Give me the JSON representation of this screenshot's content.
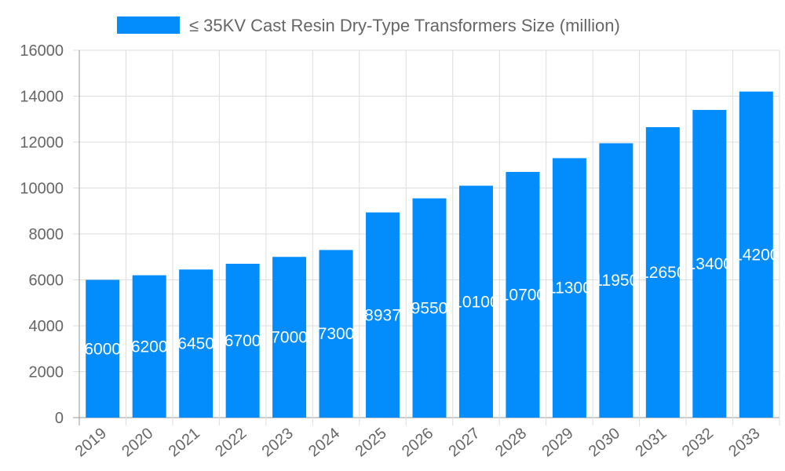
{
  "chart_data": {
    "type": "bar",
    "categories": [
      "2019",
      "2020",
      "2021",
      "2022",
      "2023",
      "2024",
      "2025",
      "2026",
      "2027",
      "2028",
      "2029",
      "2030",
      "2031",
      "2032",
      "2033"
    ],
    "series": [
      {
        "name": "≤ 35KV Cast Resin Dry-Type Transformers Size (million)",
        "values": [
          6000,
          6200,
          6450,
          6700,
          7000,
          7300,
          8937,
          9550,
          10100,
          10700,
          11300,
          11950,
          12650,
          13400,
          14200
        ]
      }
    ],
    "ylim": [
      0,
      16000
    ],
    "yticks": [
      "0",
      "2000",
      "4000",
      "6000",
      "8000",
      "10000",
      "12000",
      "14000",
      "16000"
    ],
    "grid": true,
    "legend": "top",
    "color": "#038cfc"
  }
}
